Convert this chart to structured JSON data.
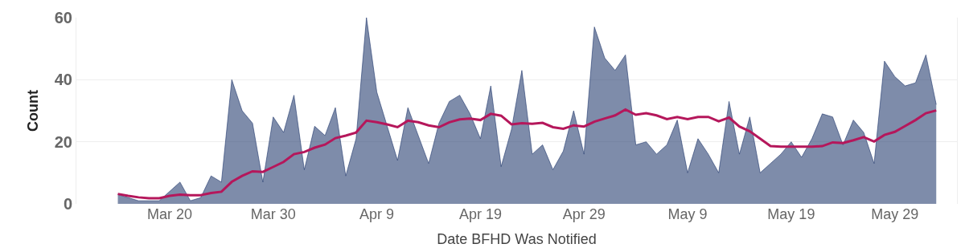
{
  "chart_data": {
    "type": "area",
    "xlabel": "Date BFHD Was Notified",
    "ylabel": "Count",
    "x": [
      "--03-15",
      "--03-16",
      "--03-17",
      "--03-18",
      "--03-19",
      "--03-20",
      "--03-21",
      "--03-22",
      "--03-23",
      "--03-24",
      "--03-25",
      "--03-26",
      "--03-27",
      "--03-28",
      "--03-29",
      "--03-30",
      "--03-31",
      "--04-01",
      "--04-02",
      "--04-03",
      "--04-04",
      "--04-05",
      "--04-06",
      "--04-07",
      "--04-08",
      "--04-09",
      "--04-10",
      "--04-11",
      "--04-12",
      "--04-13",
      "--04-14",
      "--04-15",
      "--04-16",
      "--04-17",
      "--04-18",
      "--04-19",
      "--04-20",
      "--04-21",
      "--04-22",
      "--04-23",
      "--04-24",
      "--04-25",
      "--04-26",
      "--04-27",
      "--04-28",
      "--04-29",
      "--04-30",
      "--05-01",
      "--05-02",
      "--05-03",
      "--05-04",
      "--05-05",
      "--05-06",
      "--05-07",
      "--05-08",
      "--05-09",
      "--05-10",
      "--05-11",
      "--05-12",
      "--05-13",
      "--05-14",
      "--05-15",
      "--05-16",
      "--05-17",
      "--05-18",
      "--05-19",
      "--05-20",
      "--05-21",
      "--05-22",
      "--05-23",
      "--05-24",
      "--05-25",
      "--05-26",
      "--05-27",
      "--05-28",
      "--05-29",
      "--05-30",
      "--05-31",
      "--06-01",
      "--06-02"
    ],
    "series": [
      {
        "color": "#1d3469",
        "values": [
          3,
          2,
          1,
          1,
          1,
          4,
          7,
          1,
          2,
          9,
          7,
          40,
          30,
          26,
          7,
          28,
          23,
          35,
          11,
          25,
          22,
          31,
          9,
          21,
          60,
          36,
          25,
          14,
          31,
          22,
          13,
          26,
          33,
          35,
          29,
          21,
          38,
          12,
          24,
          43,
          16,
          19,
          11,
          17,
          30,
          16,
          57,
          47,
          43,
          48,
          19,
          20,
          16,
          19,
          27,
          10,
          21,
          16,
          10,
          33,
          16,
          28,
          10,
          13,
          16,
          20,
          15,
          21,
          29,
          28,
          19,
          27,
          23,
          13,
          46,
          41,
          38,
          39,
          48,
          32
        ]
      },
      {
        "type": "line",
        "color": "#b5175b",
        "values": [
          3.2,
          2.6,
          2.1,
          1.8,
          1.8,
          2.6,
          3.0,
          2.8,
          2.8,
          3.5,
          3.9,
          7.1,
          9.0,
          10.5,
          10.3,
          11.9,
          13.5,
          16.0,
          16.7,
          18.1,
          19.1,
          21.2,
          22.0,
          23.0,
          26.8,
          26.3,
          25.6,
          24.7,
          26.8,
          26.3,
          25.3,
          24.7,
          26.3,
          27.2,
          27.5,
          27.0,
          29.0,
          28.4,
          25.6,
          26.0,
          25.8,
          26.1,
          24.7,
          24.2,
          25.3,
          24.9,
          26.5,
          27.5,
          28.5,
          30.4,
          28.7,
          29.2,
          28.5,
          27.3,
          28.0,
          27.3,
          28.0,
          28.0,
          26.6,
          27.8,
          24.9,
          23.4,
          21.0,
          18.6,
          18.4,
          18.4,
          18.4,
          18.4,
          18.6,
          19.8,
          19.6,
          20.5,
          21.5,
          20.1,
          22.2,
          23.2,
          25.1,
          27.0,
          29.2,
          30.1
        ]
      }
    ],
    "xlim": [
      "--03-11",
      "--06-04"
    ],
    "xticks": [
      {
        "value": "--03-20",
        "label": "Mar 20"
      },
      {
        "value": "--03-30",
        "label": "Mar 30"
      },
      {
        "value": "--04-09",
        "label": "Apr 9"
      },
      {
        "value": "--04-19",
        "label": "Apr 19"
      },
      {
        "value": "--04-29",
        "label": "Apr 29"
      },
      {
        "value": "--05-09",
        "label": "May 9"
      },
      {
        "value": "--05-19",
        "label": "May 19"
      },
      {
        "value": "--05-29",
        "label": "May 29"
      }
    ],
    "ylim": [
      0,
      60
    ],
    "yticks": [
      0,
      20,
      40,
      60
    ],
    "grid": "y"
  }
}
